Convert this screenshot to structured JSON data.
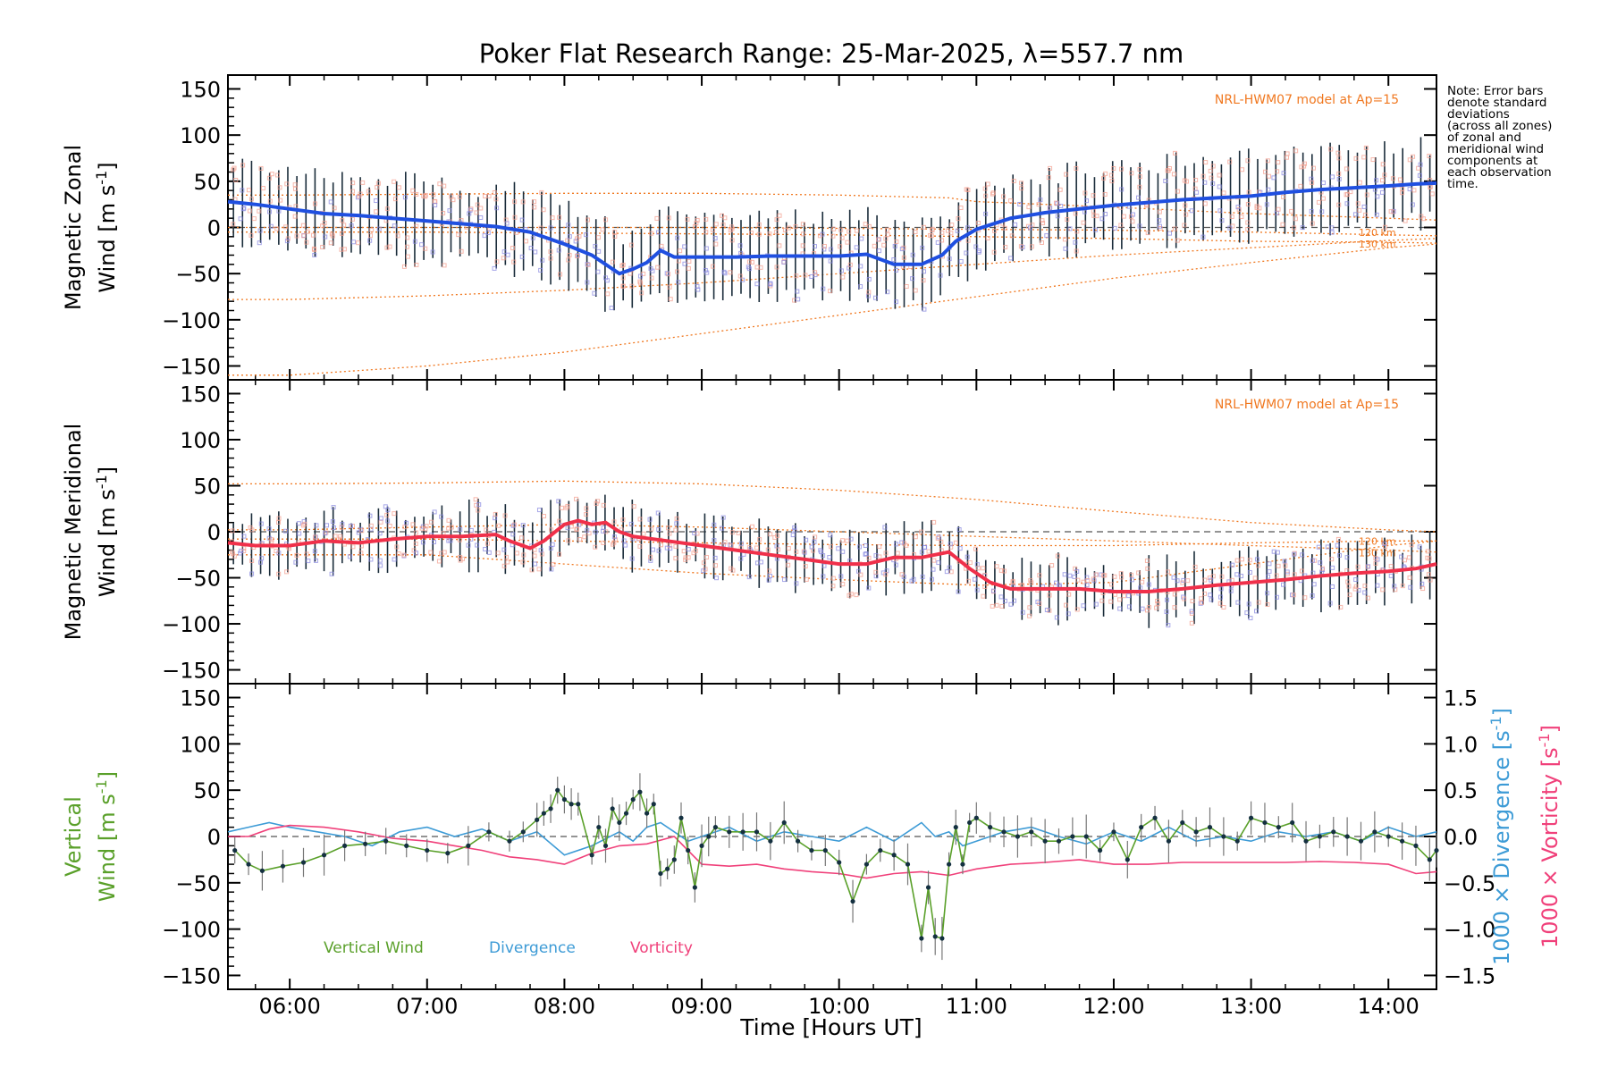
{
  "title": "Poker Flat Research Range: 25-Mar-2025, λ=557.7 nm",
  "note": "Note: Error bars\ndenote standard\ndeviations\n(across all zones)\nof zonal and\nmeridional wind\ncomponents at\neach observation\ntime.",
  "model_label": "NRL-HWM07 model at Ap=15",
  "xaxis": {
    "label": "Time [Hours UT]",
    "range_hours": [
      5.55,
      14.35
    ],
    "ticks": [
      "06:00",
      "07:00",
      "08:00",
      "09:00",
      "10:00",
      "11:00",
      "12:00",
      "13:00",
      "14:00"
    ]
  },
  "colors": {
    "zonal": "#1f4fe0",
    "meridional": "#f0304a",
    "vertical": "#5aa02a",
    "divergence": "#3d9bd6",
    "vorticity": "#f0407a",
    "model": "#f07820",
    "errorbar": "#1a2c3a",
    "zone_points": "#8a8ae0",
    "zone_points_alt": "#f4a090"
  },
  "chart_data": [
    {
      "type": "line",
      "panel": "zonal",
      "ylabel_line1": "Magnetic Zonal",
      "ylabel_line2": "Wind [m s",
      "ylabel_sup": "-1",
      "ylabel_close": "]",
      "ylim": [
        -165,
        165
      ],
      "yticks": [
        "150",
        "100",
        "50",
        "0",
        "−50",
        "−100",
        "−150"
      ],
      "model_annotations": [
        "120 km",
        "130 km"
      ],
      "series": [
        {
          "x": [
            5.55,
            5.75,
            6.0,
            6.25,
            6.5,
            6.75,
            7.0,
            7.25,
            7.5,
            7.75,
            8.0,
            8.2,
            8.4,
            8.5,
            8.6,
            8.7,
            8.8,
            9.0,
            9.25,
            9.5,
            9.75,
            10.0,
            10.2,
            10.4,
            10.6,
            10.75,
            10.85,
            11.0,
            11.25,
            11.5,
            11.75,
            12.0,
            12.25,
            12.5,
            12.75,
            13.0,
            13.25,
            13.5,
            13.75,
            14.0,
            14.2,
            14.35
          ],
          "values": [
            28,
            25,
            20,
            15,
            13,
            10,
            7,
            4,
            1,
            -5,
            -18,
            -30,
            -50,
            -45,
            -38,
            -25,
            -32,
            -32,
            -32,
            -31,
            -31,
            -31,
            -29,
            -40,
            -40,
            -30,
            -15,
            -2,
            10,
            16,
            20,
            24,
            27,
            30,
            32,
            34,
            38,
            41,
            43,
            45,
            47,
            48
          ]
        },
        {
          "name": "NRL-HWM07 model at Ap=15",
          "x": [
            5.55,
            6.0,
            7.0,
            8.0,
            9.0,
            10.0,
            10.8,
            11.0,
            12.0,
            13.0,
            14.0,
            14.35
          ],
          "values": [
            35,
            35,
            36,
            37,
            37,
            35,
            32,
            28,
            22,
            15,
            10,
            8
          ]
        },
        {
          "x": [
            5.55,
            6.0,
            7.0,
            8.0,
            9.0,
            10.0,
            11.0,
            12.0,
            13.0,
            14.0,
            14.35
          ],
          "values": [
            -78,
            -78,
            -74,
            -68,
            -60,
            -50,
            -40,
            -30,
            -22,
            -14,
            -12
          ]
        },
        {
          "x": [
            5.55,
            6.0,
            7.0,
            8.0,
            9.0,
            10.0,
            11.0,
            12.0,
            13.0,
            14.0,
            14.35
          ],
          "values": [
            -160,
            -160,
            -150,
            -135,
            -115,
            -95,
            -75,
            -55,
            -38,
            -22,
            -18
          ]
        },
        {
          "x": [
            5.55,
            6.0,
            7.0,
            8.0,
            9.0,
            10.0,
            11.0,
            12.0,
            13.0,
            14.0,
            14.35
          ],
          "values": [
            0,
            0,
            0,
            0,
            0,
            -1,
            -2,
            -3,
            -5,
            -8,
            -9
          ]
        },
        {
          "x": [
            5.55,
            6.0,
            7.0,
            8.0,
            9.0,
            10.0,
            11.0,
            12.0,
            13.0,
            14.0,
            14.35
          ],
          "values": [
            -5,
            -5,
            -5,
            -6,
            -7,
            -8,
            -10,
            -12,
            -15,
            -16,
            -17
          ]
        }
      ]
    },
    {
      "type": "line",
      "panel": "meridional",
      "ylabel_line1": "Magnetic Meridional",
      "ylabel_line2": "Wind [m s",
      "ylabel_sup": "-1",
      "ylabel_close": "]",
      "ylim": [
        -165,
        165
      ],
      "yticks": [
        "150",
        "100",
        "50",
        "0",
        "−50",
        "−100",
        "−150"
      ],
      "model_annotations": [
        "120 km",
        "130 km"
      ],
      "series": [
        {
          "x": [
            5.55,
            5.75,
            6.0,
            6.25,
            6.5,
            6.75,
            7.0,
            7.25,
            7.5,
            7.6,
            7.75,
            7.85,
            8.0,
            8.1,
            8.2,
            8.3,
            8.4,
            8.5,
            8.75,
            9.0,
            9.25,
            9.5,
            9.75,
            10.0,
            10.2,
            10.4,
            10.6,
            10.8,
            10.85,
            10.95,
            11.1,
            11.25,
            11.5,
            11.75,
            12.0,
            12.25,
            12.5,
            12.75,
            13.0,
            13.25,
            13.5,
            13.75,
            14.0,
            14.2,
            14.35
          ],
          "values": [
            -12,
            -15,
            -15,
            -10,
            -12,
            -8,
            -5,
            -5,
            -3,
            -10,
            -18,
            -10,
            8,
            12,
            8,
            10,
            0,
            -5,
            -10,
            -15,
            -20,
            -25,
            -30,
            -35,
            -35,
            -28,
            -28,
            -22,
            -28,
            -40,
            -55,
            -62,
            -62,
            -62,
            -65,
            -65,
            -62,
            -58,
            -55,
            -52,
            -48,
            -45,
            -43,
            -40,
            -35
          ]
        },
        {
          "name": "NRL-HWM07 model at Ap=15",
          "x": [
            5.55,
            6.0,
            7.0,
            8.0,
            9.0,
            10.0,
            11.0,
            12.0,
            13.0,
            14.0,
            14.35
          ],
          "values": [
            52,
            52,
            53,
            55,
            52,
            45,
            35,
            22,
            10,
            2,
            0
          ]
        },
        {
          "x": [
            5.55,
            6.0,
            7.0,
            7.5,
            8.0,
            9.0,
            10.0,
            11.0,
            12.0,
            13.0,
            14.0,
            14.35
          ],
          "values": [
            -25,
            -25,
            -25,
            -30,
            -35,
            -45,
            -52,
            -58,
            -55,
            -35,
            -15,
            -10
          ]
        },
        {
          "x": [
            5.55,
            6.0,
            7.0,
            8.0,
            9.0,
            10.0,
            11.0,
            12.0,
            13.0,
            14.0,
            14.35
          ],
          "values": [
            2,
            2,
            5,
            8,
            5,
            0,
            -5,
            -10,
            -15,
            -20,
            -22
          ]
        },
        {
          "x": [
            5.55,
            6.0,
            7.0,
            8.0,
            9.0,
            10.0,
            11.0,
            12.0,
            13.0,
            14.0,
            14.35
          ],
          "values": [
            -8,
            -8,
            -8,
            -10,
            -12,
            -14,
            -15,
            -15,
            -12,
            -10,
            -10
          ]
        }
      ]
    },
    {
      "type": "line",
      "panel": "vertical",
      "ylabel_line1": "Vertical",
      "ylabel_line2": "Wind [m s",
      "ylabel_sup": "-1",
      "ylabel_close": "]",
      "ylim": [
        -165,
        165
      ],
      "yticks": [
        "150",
        "100",
        "50",
        "0",
        "−50",
        "−100",
        "−150"
      ],
      "y2ticks": [
        "1.5",
        "1.0",
        "0.5",
        "0.0",
        "−0.5",
        "−1.0",
        "−1.5"
      ],
      "y2lim": [
        -1.5,
        1.5
      ],
      "y2label_divergence": "1000 × Divergence [s",
      "y2label_vorticity": "1000 × Vorticity [s",
      "y2label_sup": "-1",
      "y2label_close": "]",
      "legend": [
        "Vertical Wind",
        "Divergence",
        "Vorticity"
      ],
      "series": [
        {
          "name": "Vertical Wind",
          "x": [
            5.6,
            5.7,
            5.8,
            5.95,
            6.1,
            6.25,
            6.4,
            6.55,
            6.7,
            6.85,
            7.0,
            7.15,
            7.3,
            7.45,
            7.6,
            7.7,
            7.8,
            7.85,
            7.9,
            7.95,
            8.0,
            8.05,
            8.1,
            8.2,
            8.25,
            8.3,
            8.35,
            8.4,
            8.45,
            8.5,
            8.55,
            8.6,
            8.65,
            8.7,
            8.75,
            8.8,
            8.85,
            8.9,
            8.95,
            9.0,
            9.05,
            9.1,
            9.2,
            9.3,
            9.4,
            9.5,
            9.6,
            9.7,
            9.8,
            9.9,
            10.0,
            10.1,
            10.2,
            10.3,
            10.4,
            10.5,
            10.6,
            10.65,
            10.7,
            10.75,
            10.8,
            10.85,
            10.9,
            10.95,
            11.0,
            11.1,
            11.2,
            11.3,
            11.4,
            11.5,
            11.6,
            11.7,
            11.8,
            11.9,
            12.0,
            12.1,
            12.2,
            12.3,
            12.4,
            12.5,
            12.6,
            12.7,
            12.8,
            12.9,
            13.0,
            13.1,
            13.2,
            13.3,
            13.4,
            13.5,
            13.6,
            13.7,
            13.8,
            13.9,
            14.0,
            14.1,
            14.2,
            14.3,
            14.35
          ],
          "values": [
            -15,
            -30,
            -37,
            -32,
            -28,
            -20,
            -10,
            -8,
            -5,
            -10,
            -15,
            -18,
            -10,
            5,
            -5,
            5,
            18,
            25,
            30,
            50,
            40,
            35,
            35,
            -20,
            10,
            -10,
            30,
            15,
            25,
            40,
            48,
            25,
            35,
            -40,
            -35,
            -25,
            20,
            -15,
            -55,
            -10,
            0,
            10,
            5,
            5,
            5,
            -5,
            15,
            -5,
            -15,
            -15,
            -28,
            -70,
            -30,
            -15,
            -20,
            -30,
            -110,
            -55,
            -108,
            -110,
            -30,
            10,
            -30,
            15,
            20,
            10,
            5,
            0,
            5,
            -5,
            -5,
            0,
            0,
            -15,
            5,
            -25,
            10,
            20,
            -5,
            15,
            5,
            10,
            0,
            -5,
            20,
            15,
            10,
            15,
            -5,
            0,
            5,
            0,
            -5,
            5,
            0,
            -5,
            -10,
            -25,
            -15
          ]
        },
        {
          "name": "Divergence",
          "x": [
            5.55,
            5.7,
            5.85,
            6.0,
            6.2,
            6.4,
            6.6,
            6.8,
            7.0,
            7.2,
            7.4,
            7.6,
            7.8,
            8.0,
            8.2,
            8.4,
            8.5,
            8.6,
            8.7,
            8.8,
            8.9,
            9.0,
            9.2,
            9.4,
            9.6,
            9.8,
            10.0,
            10.2,
            10.4,
            10.6,
            10.7,
            10.8,
            10.9,
            11.0,
            11.2,
            11.4,
            11.6,
            11.8,
            12.0,
            12.2,
            12.4,
            12.6,
            12.8,
            13.0,
            13.2,
            13.4,
            13.6,
            13.8,
            14.0,
            14.2,
            14.35
          ],
          "values": [
            0.05,
            0.1,
            0.15,
            0.1,
            0.05,
            0.0,
            -0.1,
            0.05,
            0.1,
            0.0,
            0.08,
            -0.05,
            0.05,
            -0.2,
            -0.1,
            0.05,
            -0.05,
            0.1,
            0.15,
            0.05,
            -0.05,
            0.0,
            0.1,
            -0.05,
            0.05,
            0.0,
            -0.05,
            0.1,
            -0.05,
            0.15,
            0.0,
            0.05,
            -0.1,
            -0.05,
            0.05,
            0.1,
            0.0,
            -0.08,
            0.05,
            -0.05,
            0.1,
            -0.05,
            0.0,
            -0.05,
            0.05,
            0.0,
            0.05,
            -0.05,
            0.1,
            0.0,
            0.05
          ]
        },
        {
          "name": "Vorticity",
          "x": [
            5.55,
            5.7,
            5.85,
            6.0,
            6.25,
            6.5,
            6.75,
            7.0,
            7.2,
            7.4,
            7.6,
            7.8,
            8.0,
            8.2,
            8.4,
            8.6,
            8.8,
            9.0,
            9.2,
            9.4,
            9.6,
            9.8,
            10.0,
            10.2,
            10.4,
            10.6,
            10.8,
            11.0,
            11.25,
            11.5,
            11.75,
            12.0,
            12.25,
            12.5,
            12.75,
            13.0,
            13.25,
            13.5,
            13.75,
            14.0,
            14.2,
            14.35
          ],
          "values": [
            0.0,
            0.0,
            0.08,
            0.12,
            0.1,
            0.05,
            -0.02,
            -0.05,
            -0.1,
            -0.15,
            -0.22,
            -0.25,
            -0.3,
            -0.18,
            -0.1,
            -0.08,
            0.0,
            -0.3,
            -0.32,
            -0.3,
            -0.35,
            -0.38,
            -0.4,
            -0.45,
            -0.4,
            -0.38,
            -0.42,
            -0.35,
            -0.3,
            -0.28,
            -0.25,
            -0.3,
            -0.3,
            -0.28,
            -0.28,
            -0.28,
            -0.28,
            -0.27,
            -0.28,
            -0.3,
            -0.4,
            -0.38
          ]
        }
      ]
    }
  ]
}
